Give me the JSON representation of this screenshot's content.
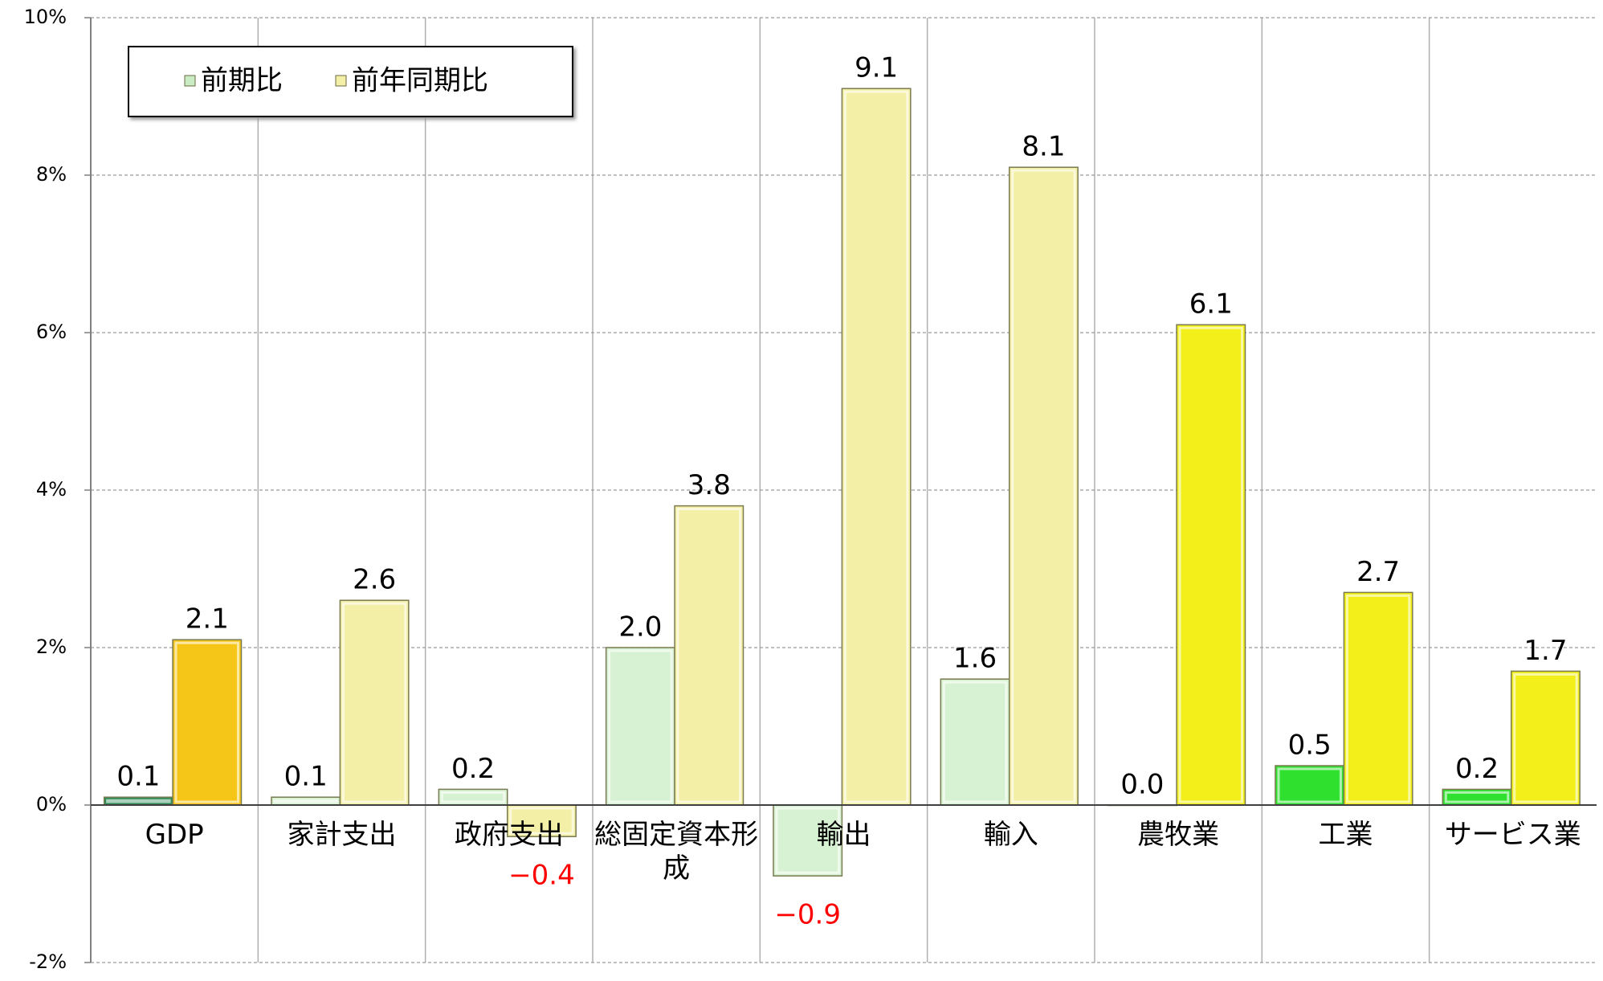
{
  "chart_data": {
    "type": "bar",
    "categories": [
      "GDP",
      "家計支出",
      "政府支出",
      "総固定資本形成",
      "輸出",
      "輸入",
      "農牧業",
      "工業",
      "サービス業"
    ],
    "series": [
      {
        "name": "前期比",
        "color": "#c9ecc4",
        "colors": [
          "#2e8b57",
          "#d6f2d2",
          "#d6f2d2",
          "#d6f2d2",
          "#d6f2d2",
          "#d6f2d2",
          "#d6f2d2",
          "#2fe02f",
          "#2fe02f"
        ],
        "values": [
          0.1,
          0.1,
          0.2,
          2.0,
          -0.9,
          1.6,
          0.0,
          0.5,
          0.2
        ],
        "value_labels": [
          "0.1",
          "0.1",
          "0.2",
          "2.0",
          "−0.9",
          "1.6",
          "0.0",
          "0.5",
          "0.2"
        ]
      },
      {
        "name": "前年同期比",
        "color": "#f4efa6",
        "colors": [
          "#f5c518",
          "#f4efa6",
          "#f4efa6",
          "#f4efa6",
          "#f4efa6",
          "#f4efa6",
          "#f2ef1a",
          "#f2ef1a",
          "#f2ef1a"
        ],
        "values": [
          2.1,
          2.6,
          -0.4,
          3.8,
          9.1,
          8.1,
          6.1,
          2.7,
          1.7
        ],
        "value_labels": [
          "2.1",
          "2.6",
          "−0.4",
          "3.8",
          "9.1",
          "8.1",
          "6.1",
          "2.7",
          "1.7"
        ]
      }
    ],
    "ylim": [
      -2,
      10
    ],
    "yticks": [
      {
        "value": -2,
        "label": "-2%"
      },
      {
        "value": 0,
        "label": "0%"
      },
      {
        "value": 2,
        "label": "2%"
      },
      {
        "value": 4,
        "label": "4%"
      },
      {
        "value": 6,
        "label": "6%"
      },
      {
        "value": 8,
        "label": "8%"
      },
      {
        "value": 10,
        "label": "10%"
      }
    ],
    "grid": true,
    "legend": "top-left",
    "negative_label_color": "#ff0000"
  }
}
